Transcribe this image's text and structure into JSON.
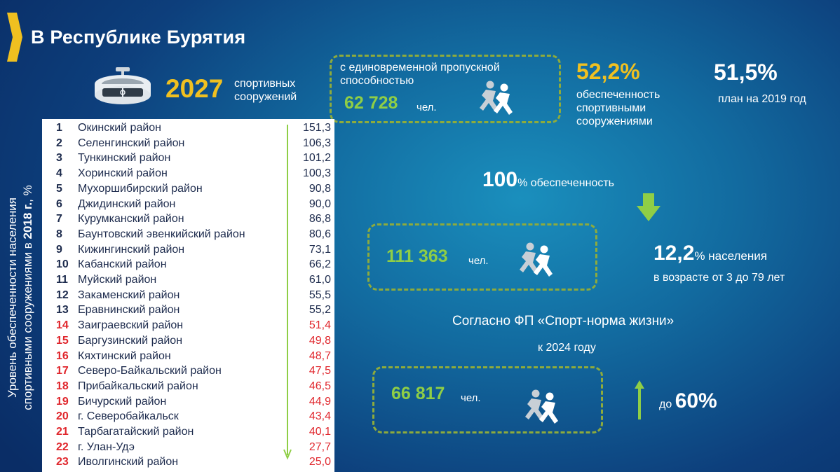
{
  "title": "В Республике Бурятия",
  "facilities": {
    "number": "2027",
    "label": "спортивных сооружений"
  },
  "capacity": {
    "label": "с единовременной пропускной способностью",
    "value": "62 728",
    "unit": "чел."
  },
  "provision": {
    "percent": "52,2%",
    "label": "обеспеченность спортивными сооружениями"
  },
  "plan": {
    "percent": "51,5%",
    "label": "план на 2019 год"
  },
  "full_provision": {
    "percent": "100",
    "label": "% обеспеченность"
  },
  "needed": {
    "value": "111 363",
    "unit": "чел."
  },
  "population": {
    "percent": "12,2",
    "label": "% населения",
    "age": "в возрасте от 3 до 79 лет"
  },
  "fp": {
    "label": "Согласно ФП «Спорт-норма жизни»",
    "year": "к 2024 году"
  },
  "target": {
    "value": "66 817",
    "unit": "чел.",
    "prefix": "до",
    "percent": "60%"
  },
  "vertical_label": {
    "line1": "Уровень обеспеченности населения",
    "line2_pre": "спортивными сооружениями в ",
    "line2_bold": "2018 г.",
    "line2_post": ", %"
  },
  "colors": {
    "accent_yellow": "#f0c020",
    "green": "#8fce46",
    "red": "#e0262c"
  },
  "ranking": [
    {
      "rank": "1",
      "name": "Окинский район",
      "value": "151,3",
      "red": false
    },
    {
      "rank": "2",
      "name": "Селенгинский район",
      "value": "106,3",
      "red": false
    },
    {
      "rank": "3",
      "name": "Тункинский район",
      "value": "101,2",
      "red": false
    },
    {
      "rank": "4",
      "name": "Хоринский район",
      "value": "100,3",
      "red": false
    },
    {
      "rank": "5",
      "name": "Мухоршибирский район",
      "value": "90,8",
      "red": false
    },
    {
      "rank": "6",
      "name": "Джидинский район",
      "value": "90,0",
      "red": false
    },
    {
      "rank": "7",
      "name": "Курумканский район",
      "value": "86,8",
      "red": false
    },
    {
      "rank": "8",
      "name": "Баунтовский эвенкийский район",
      "value": "80,6",
      "red": false
    },
    {
      "rank": "9",
      "name": "Кижингинский район",
      "value": "73,1",
      "red": false
    },
    {
      "rank": "10",
      "name": "Кабанский район",
      "value": "66,2",
      "red": false
    },
    {
      "rank": "11",
      "name": "Муйский район",
      "value": "61,0",
      "red": false
    },
    {
      "rank": "12",
      "name": "Закаменский район",
      "value": "55,5",
      "red": false
    },
    {
      "rank": "13",
      "name": "Еравнинский район",
      "value": "55,2",
      "red": false
    },
    {
      "rank": "14",
      "name": "Заиграевский район",
      "value": "51,4",
      "red": true
    },
    {
      "rank": "15",
      "name": "Баргузинский район",
      "value": "49,8",
      "red": true
    },
    {
      "rank": "16",
      "name": "Кяхтинский район",
      "value": "48,7",
      "red": true
    },
    {
      "rank": "17",
      "name": "Северо-Байкальский район",
      "value": "47,5",
      "red": true
    },
    {
      "rank": "18",
      "name": "Прибайкальский район",
      "value": "46,5",
      "red": true
    },
    {
      "rank": "19",
      "name": "Бичурский район",
      "value": "44,9",
      "red": true
    },
    {
      "rank": "20",
      "name": "г. Северобайкальск",
      "value": "43,4",
      "red": true
    },
    {
      "rank": "21",
      "name": "Тарбагатайский район",
      "value": "40,1",
      "red": true
    },
    {
      "rank": "22",
      "name": "г. Улан-Удэ",
      "value": "27,7",
      "red": true
    },
    {
      "rank": "23",
      "name": "Иволгинский район",
      "value": "25,0",
      "red": true
    }
  ]
}
